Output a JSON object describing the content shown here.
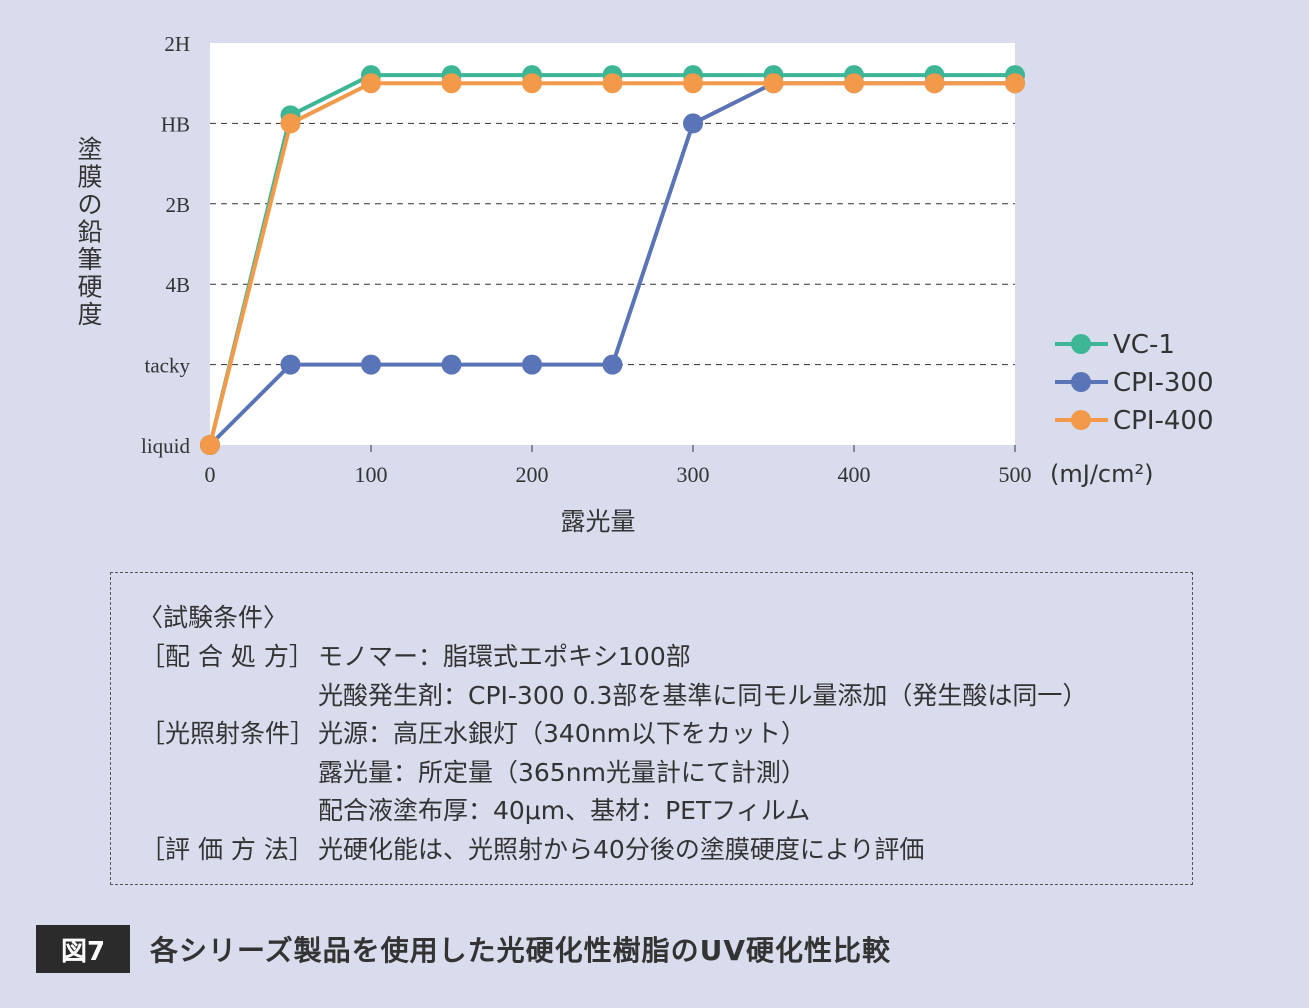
{
  "chart_data": {
    "type": "line",
    "ylabel": "塗膜の鉛筆硬度",
    "xlabel": "露光量",
    "x_unit": "(mJ/cm²)",
    "x_ticks": [
      0,
      100,
      200,
      300,
      400,
      500
    ],
    "y_ticks": [
      "liquid",
      "tacky",
      "4B",
      "2B",
      "HB",
      "2H"
    ],
    "xlim": [
      0,
      500
    ],
    "x": [
      0,
      50,
      100,
      150,
      200,
      250,
      300,
      350,
      400,
      450,
      500
    ],
    "series": [
      {
        "name": "VC-1",
        "color": "#3db696",
        "values": [
          0,
          4.1,
          4.6,
          4.6,
          4.6,
          4.6,
          4.6,
          4.6,
          4.6,
          4.6,
          4.6
        ]
      },
      {
        "name": "CPI-300",
        "color": "#5a74b8",
        "values": [
          0,
          1,
          1,
          1,
          1,
          1,
          4,
          4.5,
          4.5,
          4.5,
          4.5
        ]
      },
      {
        "name": "CPI-400",
        "color": "#f39a4a",
        "values": [
          0,
          4,
          4.5,
          4.5,
          4.5,
          4.5,
          4.5,
          4.5,
          4.5,
          4.5,
          4.5
        ]
      }
    ],
    "grid": "dashed horizontal",
    "legend": "right"
  },
  "conditions": {
    "heading": "〈試験条件〉",
    "rows": [
      {
        "label": "［配 合 処 方］",
        "text": "モノマー：脂環式エポキシ100部"
      },
      {
        "label": "",
        "text": "光酸発生剤：CPI-300 0.3部を基準に同モル量添加（発生酸は同一）"
      },
      {
        "label": "［光照射条件］",
        "text": "光源：高圧水銀灯（340nm以下をカット）"
      },
      {
        "label": "",
        "text": "露光量：所定量（365nm光量計にて計測）"
      },
      {
        "label": "",
        "text": "配合液塗布厚：40μm、基材：PETフィルム"
      },
      {
        "label": "［評 価 方 法］",
        "text": "光硬化能は、光照射から40分後の塗膜硬度により評価"
      }
    ]
  },
  "caption": {
    "badge": "図7",
    "title": "各シリーズ製品を使用した光硬化性樹脂のUV硬化性比較"
  }
}
